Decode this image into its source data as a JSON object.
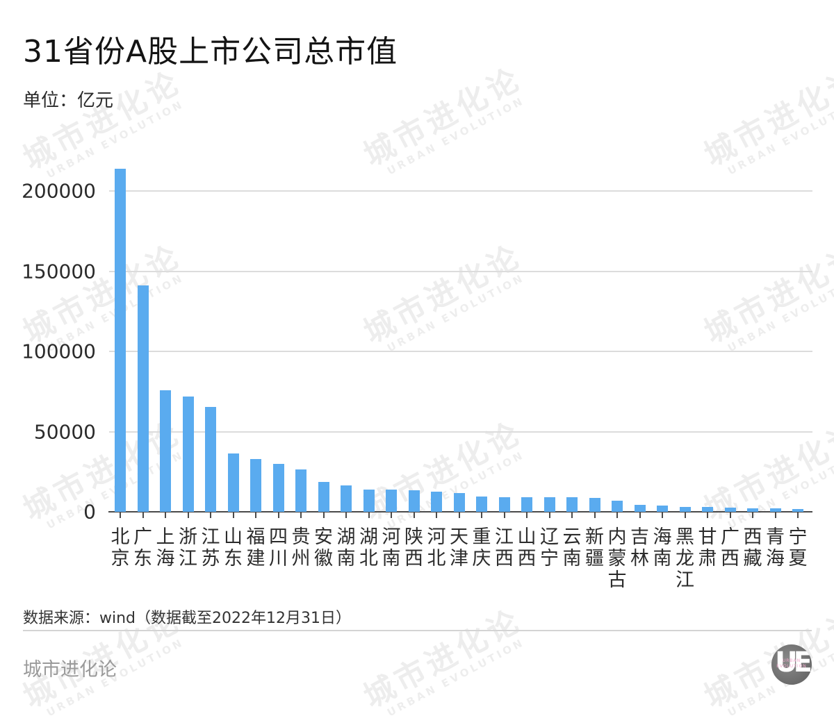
{
  "header": {
    "title": "31省份A股上市公司总市值",
    "unit": "单位：亿元"
  },
  "footer": {
    "source": "数据来源：wind（数据截至2022年12月31日）",
    "brand": "城市进化论",
    "logo_letters": "UE",
    "logo_text_1": "URBAN",
    "logo_text_2": "EVOLUTION"
  },
  "watermark": {
    "cn": "城市进化论",
    "en": "URBAN EVOLUTION"
  },
  "colors": {
    "bar": "#5aabef",
    "grid": "#dcdcdc",
    "axis": "#4a4a4a"
  },
  "chart_data": {
    "type": "bar",
    "title": "31省份A股上市公司总市值",
    "subtitle": "单位：亿元",
    "xlabel": "",
    "ylabel": "亿元",
    "ylim": [
      0,
      215000
    ],
    "yticks": [
      0,
      50000,
      100000,
      150000,
      200000
    ],
    "ytick_labels": [
      "0",
      "50000",
      "100000",
      "150000",
      "200000"
    ],
    "grid": true,
    "legend": null,
    "categories": [
      "北京",
      "广东",
      "上海",
      "浙江",
      "江苏",
      "山东",
      "福建",
      "四川",
      "贵州",
      "安徽",
      "湖南",
      "湖北",
      "河南",
      "陕西",
      "河北",
      "天津",
      "重庆",
      "江西",
      "山西",
      "辽宁",
      "云南",
      "新疆",
      "内蒙古",
      "吉林",
      "海南",
      "黑龙江",
      "甘肃",
      "广西",
      "西藏",
      "青海",
      "宁夏"
    ],
    "values": [
      214000,
      141300,
      75800,
      72000,
      65500,
      36200,
      32800,
      30000,
      26400,
      18500,
      16300,
      13900,
      13800,
      13500,
      12400,
      11500,
      9500,
      9200,
      9100,
      9000,
      8900,
      8700,
      7000,
      4200,
      3700,
      3200,
      3000,
      2700,
      2300,
      2300,
      1600
    ],
    "source": "数据来源：wind（数据截至2022年12月31日）"
  }
}
